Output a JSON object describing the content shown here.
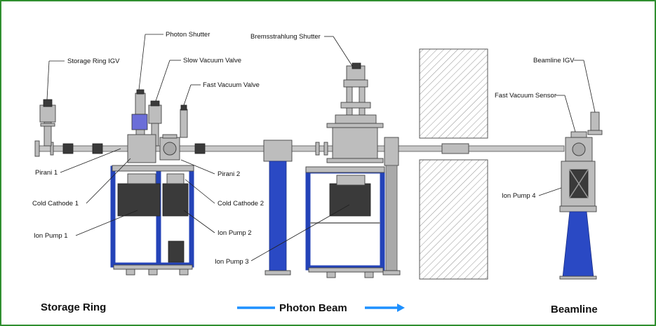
{
  "labels": {
    "storage_ring_igv": "Storage Ring IGV",
    "photon_shutter": "Photon Shutter",
    "slow_vacuum_valve": "Slow Vacuum Valve",
    "fast_vacuum_valve": "Fast Vacuum Valve",
    "bremsstrahlung_shutter": "Bremsstrahlung Shutter",
    "beamline_igv": "Beamline IGV",
    "fast_vacuum_sensor": "Fast Vacuum Sensor",
    "pirani_1": "Pirani 1",
    "pirani_2": "Pirani 2",
    "cold_cathode_1": "Cold Cathode 1",
    "cold_cathode_2": "Cold Cathode 2",
    "ion_pump_1": "Ion Pump 1",
    "ion_pump_2": "Ion Pump 2",
    "ion_pump_3": "Ion Pump 3",
    "ion_pump_4": "Ion Pump 4"
  },
  "sections": {
    "storage_ring": "Storage Ring",
    "photon_beam": "Photon Beam",
    "beamline": "Beamline"
  },
  "colors": {
    "border": "#2f8f2f",
    "support_blue": "#2a49c4",
    "arrow_blue": "#1e90ff",
    "steel": "#bdbdbd"
  }
}
